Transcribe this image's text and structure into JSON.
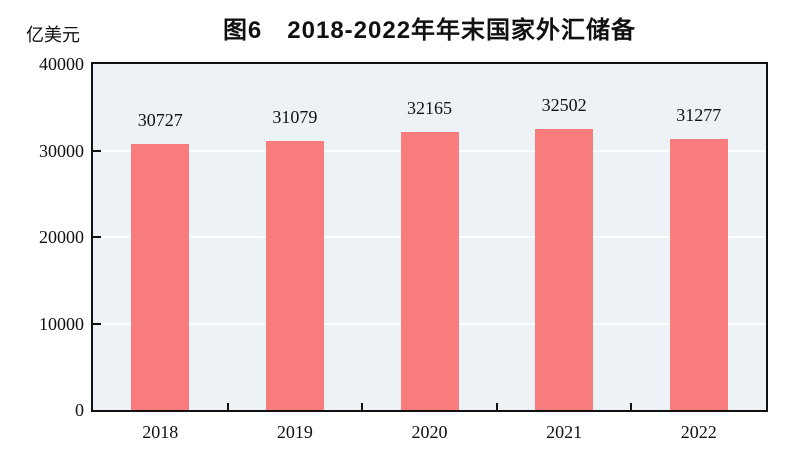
{
  "chart_data": {
    "type": "bar",
    "title": "图6　2018-2022年年末国家外汇储备",
    "unit_label": "亿美元",
    "categories": [
      "2018",
      "2019",
      "2020",
      "2021",
      "2022"
    ],
    "values": [
      30727,
      31079,
      32165,
      32502,
      31277
    ],
    "value_labels": [
      "30727",
      "31079",
      "32165",
      "32502",
      "31277"
    ],
    "xlabel": "",
    "ylabel": "亿美元",
    "ylim": [
      0,
      40000
    ],
    "yticks": [
      0,
      10000,
      20000,
      30000,
      40000
    ],
    "legend": "none",
    "grid": "horizontal white gridlines at major y ticks",
    "colors": {
      "bar": "#f97c7c",
      "plot_background": "#ecf2f6",
      "gridline": "#fbfdfe",
      "axis": "#111111",
      "text": "#111111"
    }
  }
}
